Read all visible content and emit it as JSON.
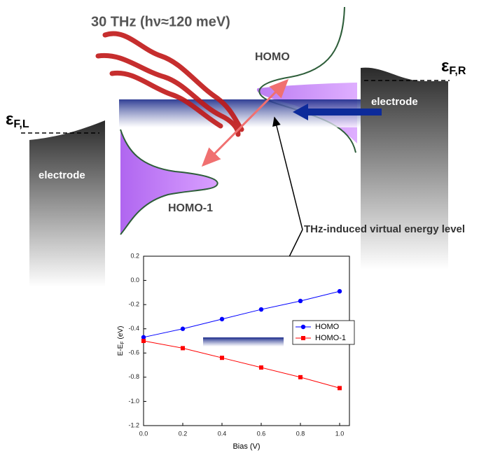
{
  "diagram": {
    "title": "30 THz (hν≈120 meV)",
    "homo": "HOMO",
    "homo1": "HOMO-1",
    "eps_left": {
      "symbol": "ε",
      "sub": "F,L"
    },
    "eps_right": {
      "symbol": "ε",
      "sub": "F,R"
    },
    "electrode_left": "electrode",
    "electrode_right": "electrode",
    "annotation": "THz-induced virtual energy level"
  },
  "chart_data": {
    "type": "line",
    "xlabel": "Bias (V)",
    "ylabel": {
      "main": "E-E",
      "sub": "F",
      "unit": "(eV)"
    },
    "x": [
      0,
      0.2,
      0.4,
      0.6,
      0.8,
      1
    ],
    "series": [
      {
        "name": "HOMO",
        "color": "#0000ff",
        "marker": "circle",
        "values": [
          -0.47,
          -0.4,
          -0.32,
          -0.24,
          -0.17,
          -0.09
        ]
      },
      {
        "name": "HOMO-1",
        "color": "#ff0000",
        "marker": "square",
        "values": [
          -0.5,
          -0.56,
          -0.64,
          -0.72,
          -0.8,
          -0.89
        ]
      }
    ],
    "xlim": [
      0,
      1.05
    ],
    "xticks": [
      {
        "value": 0,
        "label": "0.0"
      },
      0.2,
      0.4,
      0.6,
      0.8,
      {
        "value": 1,
        "label": "1.0"
      }
    ],
    "ylim": [
      -1.2,
      0.2
    ],
    "yticks": [
      -1.2,
      {
        "value": -1,
        "label": "-1.0"
      },
      -0.8,
      -0.6,
      -0.4,
      -0.2,
      {
        "value": 0,
        "label": "0.0"
      },
      0.2
    ],
    "legend": "right"
  }
}
